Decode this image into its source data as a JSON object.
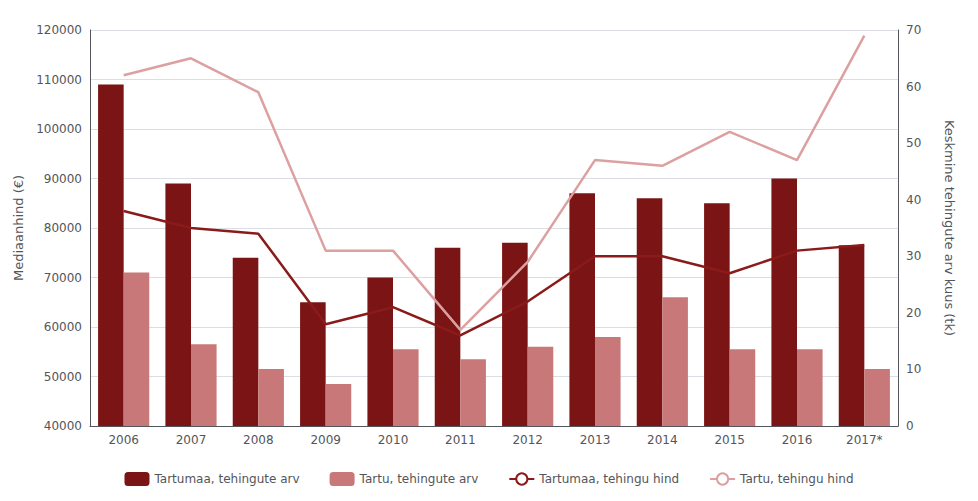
{
  "chart_data": {
    "type": "bar",
    "categories": [
      "2006",
      "2007",
      "2008",
      "2009",
      "2010",
      "2011",
      "2012",
      "2013",
      "2014",
      "2015",
      "2016",
      "2017*"
    ],
    "series": [
      {
        "name": "Tartumaa, tehingute arv",
        "type": "bar",
        "color": "#7B1414",
        "values": [
          109000,
          89000,
          74000,
          65000,
          70000,
          76000,
          77000,
          87000,
          86000,
          85000,
          90000,
          76500
        ]
      },
      {
        "name": "Tartu, tehingute arv",
        "type": "bar",
        "color": "#C87878",
        "values": [
          71000,
          56500,
          51500,
          48500,
          55500,
          53500,
          56000,
          58000,
          66000,
          55500,
          55500,
          51500
        ]
      },
      {
        "name": "Tartumaa, tehingu hind",
        "type": "line",
        "axis": "y2",
        "color": "#8B1A1A",
        "values": [
          38,
          35,
          34,
          18,
          21,
          16,
          22,
          30,
          30,
          27,
          31,
          32
        ]
      },
      {
        "name": "Tartu, tehingu hind",
        "type": "line",
        "axis": "y2",
        "color": "#DDA0A0",
        "values": [
          62,
          65,
          59,
          31,
          31,
          17,
          29,
          47,
          46,
          52,
          47,
          69
        ]
      }
    ],
    "ylabel": "Mediaanhind (€)",
    "y2label": "Keskmine tehingute arv kuus (tk)",
    "ylim": [
      40000,
      120000
    ],
    "yticks": [
      40000,
      50000,
      60000,
      70000,
      80000,
      90000,
      100000,
      110000,
      120000
    ],
    "y2lim": [
      0,
      70
    ],
    "y2ticks": [
      0,
      10,
      20,
      30,
      40,
      50,
      60,
      70
    ],
    "grid": true,
    "legend": "bottom"
  }
}
